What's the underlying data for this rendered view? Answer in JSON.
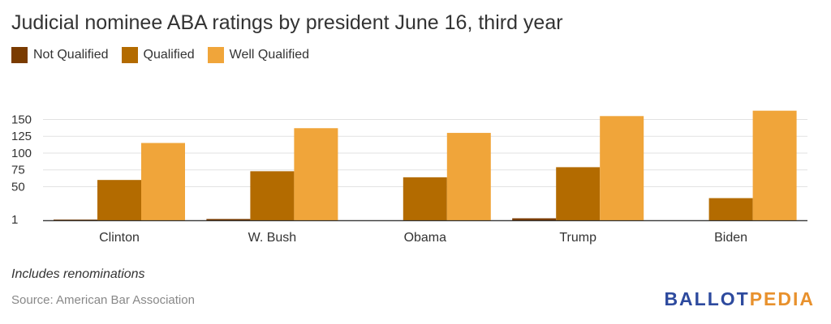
{
  "title": "Judicial nominee ABA ratings by president June 16, third year",
  "note": "Includes renominations",
  "source": "Source: American Bar Association",
  "logo": {
    "part1": "BALLOT",
    "part2": "PEDIA",
    "color1": "#2d4a9e",
    "color2": "#e8912d"
  },
  "chart_data": {
    "type": "bar",
    "title": "Judicial nominee ABA ratings by president June 16, third year",
    "xlabel": "",
    "ylabel": "",
    "categories": [
      "Clinton",
      "W. Bush",
      "Obama",
      "Trump",
      "Biden"
    ],
    "series": [
      {
        "name": "Not Qualified",
        "color": "#7a3b00",
        "values": [
          1,
          2,
          0,
          3,
          0
        ]
      },
      {
        "name": "Qualified",
        "color": "#b36b00",
        "values": [
          60,
          73,
          64,
          79,
          33
        ]
      },
      {
        "name": "Well Qualified",
        "color": "#f0a53a",
        "values": [
          115,
          137,
          130,
          155,
          163
        ]
      }
    ],
    "yticks": [
      {
        "value": 1,
        "label": "1"
      },
      {
        "value": 50,
        "label": "50"
      },
      {
        "value": 75,
        "label": "75"
      },
      {
        "value": 100,
        "label": "100"
      },
      {
        "value": 125,
        "label": "125"
      },
      {
        "value": 150,
        "label": "150"
      }
    ],
    "ylim": [
      0,
      165
    ],
    "grid": true,
    "legend": "top-left"
  }
}
